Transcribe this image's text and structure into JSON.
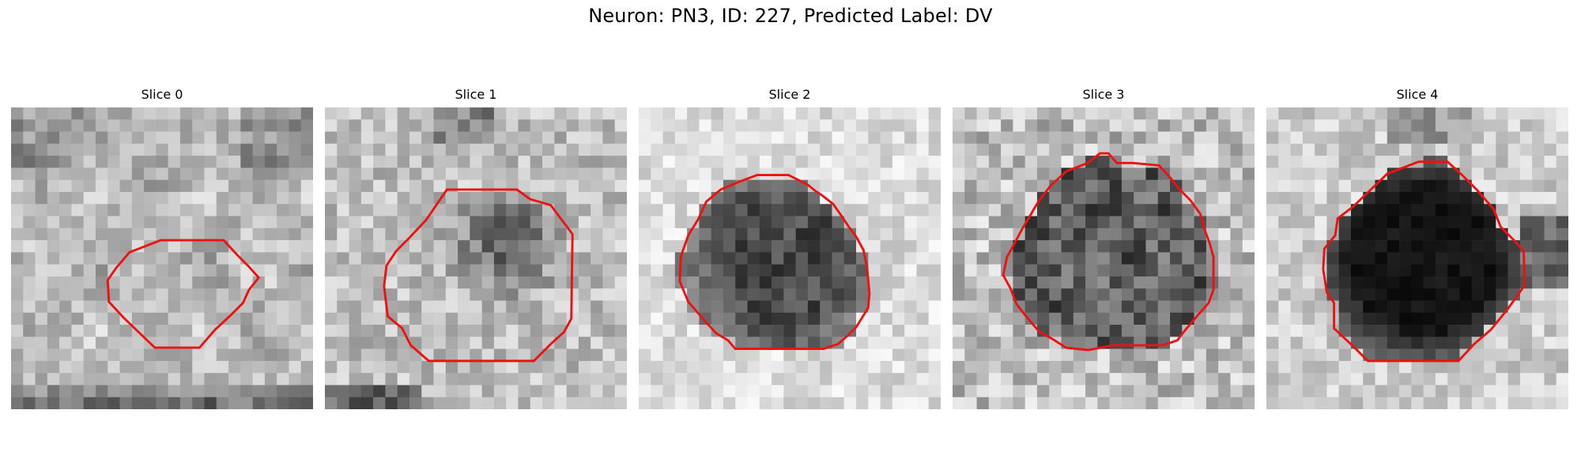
{
  "figure": {
    "title": "Neuron: PN3, ID: 227, Predicted Label: DV"
  },
  "panels": [
    {
      "title": "Slice 0",
      "image": "grayscale-microscopy-patch",
      "style": "light",
      "contour": [
        [
          12.4,
          11
        ],
        [
          17.6,
          11
        ],
        [
          18.8,
          12.3
        ],
        [
          19.7,
          13.2
        ],
        [
          20.5,
          14.1
        ],
        [
          19.7,
          15.1
        ],
        [
          19.2,
          16.2
        ],
        [
          18.2,
          17.2
        ],
        [
          16.9,
          18.4
        ],
        [
          15.6,
          19.9
        ],
        [
          11.9,
          19.9
        ],
        [
          9.3,
          17.4
        ],
        [
          8.1,
          16.1
        ],
        [
          8.0,
          14.3
        ],
        [
          8.7,
          13.3
        ],
        [
          9.8,
          12.0
        ]
      ]
    },
    {
      "title": "Slice 1",
      "image": "grayscale-microscopy-patch",
      "style": "medium-dark-center",
      "contour": [
        [
          10.1,
          6.8
        ],
        [
          15.9,
          6.8
        ],
        [
          17.0,
          7.6
        ],
        [
          18.7,
          8.1
        ],
        [
          19.6,
          9.3
        ],
        [
          20.5,
          10.5
        ],
        [
          20.4,
          17.5
        ],
        [
          19.8,
          18.6
        ],
        [
          18.7,
          19.6
        ],
        [
          17.3,
          21.0
        ],
        [
          8.6,
          21.0
        ],
        [
          7.1,
          19.7
        ],
        [
          6.4,
          18.3
        ],
        [
          5.2,
          17.3
        ],
        [
          4.9,
          14.8
        ],
        [
          5.1,
          13.1
        ],
        [
          5.9,
          11.9
        ],
        [
          6.9,
          10.9
        ],
        [
          8.4,
          9.3
        ]
      ]
    },
    {
      "title": "Slice 2",
      "image": "grayscale-microscopy-patch",
      "style": "dark-blob",
      "contour": [
        [
          9.8,
          5.6
        ],
        [
          12.4,
          5.6
        ],
        [
          14.0,
          6.4
        ],
        [
          14.6,
          6.9
        ],
        [
          15.2,
          7.3
        ],
        [
          16.1,
          8.0
        ],
        [
          16.8,
          9.0
        ],
        [
          17.4,
          9.9
        ],
        [
          18.0,
          10.7
        ],
        [
          18.6,
          11.8
        ],
        [
          18.9,
          13.2
        ],
        [
          19.1,
          15.4
        ],
        [
          19.0,
          16.6
        ],
        [
          18.5,
          17.4
        ],
        [
          18.0,
          18.2
        ],
        [
          17.3,
          18.9
        ],
        [
          16.5,
          19.6
        ],
        [
          15.3,
          20.0
        ],
        [
          8.0,
          20.0
        ],
        [
          7.4,
          19.3
        ],
        [
          6.4,
          18.7
        ],
        [
          5.4,
          17.6
        ],
        [
          4.1,
          16.1
        ],
        [
          3.4,
          14.4
        ],
        [
          3.5,
          12.3
        ],
        [
          4.1,
          10.6
        ],
        [
          4.9,
          9.3
        ],
        [
          5.6,
          7.8
        ],
        [
          6.8,
          6.8
        ],
        [
          8.2,
          6.2
        ]
      ]
    },
    {
      "title": "Slice 3",
      "image": "grayscale-microscopy-patch",
      "style": "dark-speckled",
      "contour": [
        [
          12.2,
          3.8
        ],
        [
          12.9,
          3.8
        ],
        [
          13.6,
          4.6
        ],
        [
          14.9,
          4.6
        ],
        [
          17.1,
          4.8
        ],
        [
          18.0,
          5.8
        ],
        [
          18.8,
          6.8
        ],
        [
          19.7,
          7.7
        ],
        [
          20.5,
          8.8
        ],
        [
          20.9,
          10.2
        ],
        [
          21.3,
          11.3
        ],
        [
          21.6,
          12.4
        ],
        [
          21.6,
          15.1
        ],
        [
          21.2,
          16.2
        ],
        [
          20.4,
          17.1
        ],
        [
          19.3,
          18.4
        ],
        [
          18.6,
          19.3
        ],
        [
          17.4,
          19.7
        ],
        [
          13.3,
          19.7
        ],
        [
          11.2,
          20.1
        ],
        [
          9.4,
          19.9
        ],
        [
          8.3,
          19.2
        ],
        [
          7.2,
          18.6
        ],
        [
          6.0,
          17.2
        ],
        [
          5.3,
          16.3
        ],
        [
          4.8,
          15.0
        ],
        [
          4.2,
          13.9
        ],
        [
          4.5,
          12.4
        ],
        [
          5.0,
          11.5
        ],
        [
          5.8,
          10.0
        ],
        [
          6.4,
          9.0
        ],
        [
          7.1,
          7.8
        ],
        [
          8.1,
          6.5
        ],
        [
          9.4,
          5.3
        ],
        [
          11.2,
          4.6
        ]
      ]
    },
    {
      "title": "Slice 4",
      "image": "grayscale-microscopy-patch",
      "style": "black-blob",
      "contour": [
        [
          10.0,
          5.5
        ],
        [
          12.6,
          4.5
        ],
        [
          15.0,
          4.5
        ],
        [
          16.2,
          5.6
        ],
        [
          17.4,
          6.8
        ],
        [
          18.8,
          8.4
        ],
        [
          19.4,
          9.9
        ],
        [
          20.5,
          11.0
        ],
        [
          21.3,
          11.9
        ],
        [
          21.4,
          14.7
        ],
        [
          20.7,
          15.7
        ],
        [
          19.9,
          16.8
        ],
        [
          18.6,
          18.4
        ],
        [
          17.2,
          19.6
        ],
        [
          15.9,
          21.0
        ],
        [
          8.4,
          21.0
        ],
        [
          7.2,
          19.8
        ],
        [
          5.6,
          18.3
        ],
        [
          5.6,
          16.2
        ],
        [
          5.0,
          15.3
        ],
        [
          4.7,
          13.4
        ],
        [
          4.8,
          11.7
        ],
        [
          5.7,
          10.6
        ],
        [
          5.9,
          9.2
        ],
        [
          7.2,
          8.2
        ]
      ]
    }
  ]
}
